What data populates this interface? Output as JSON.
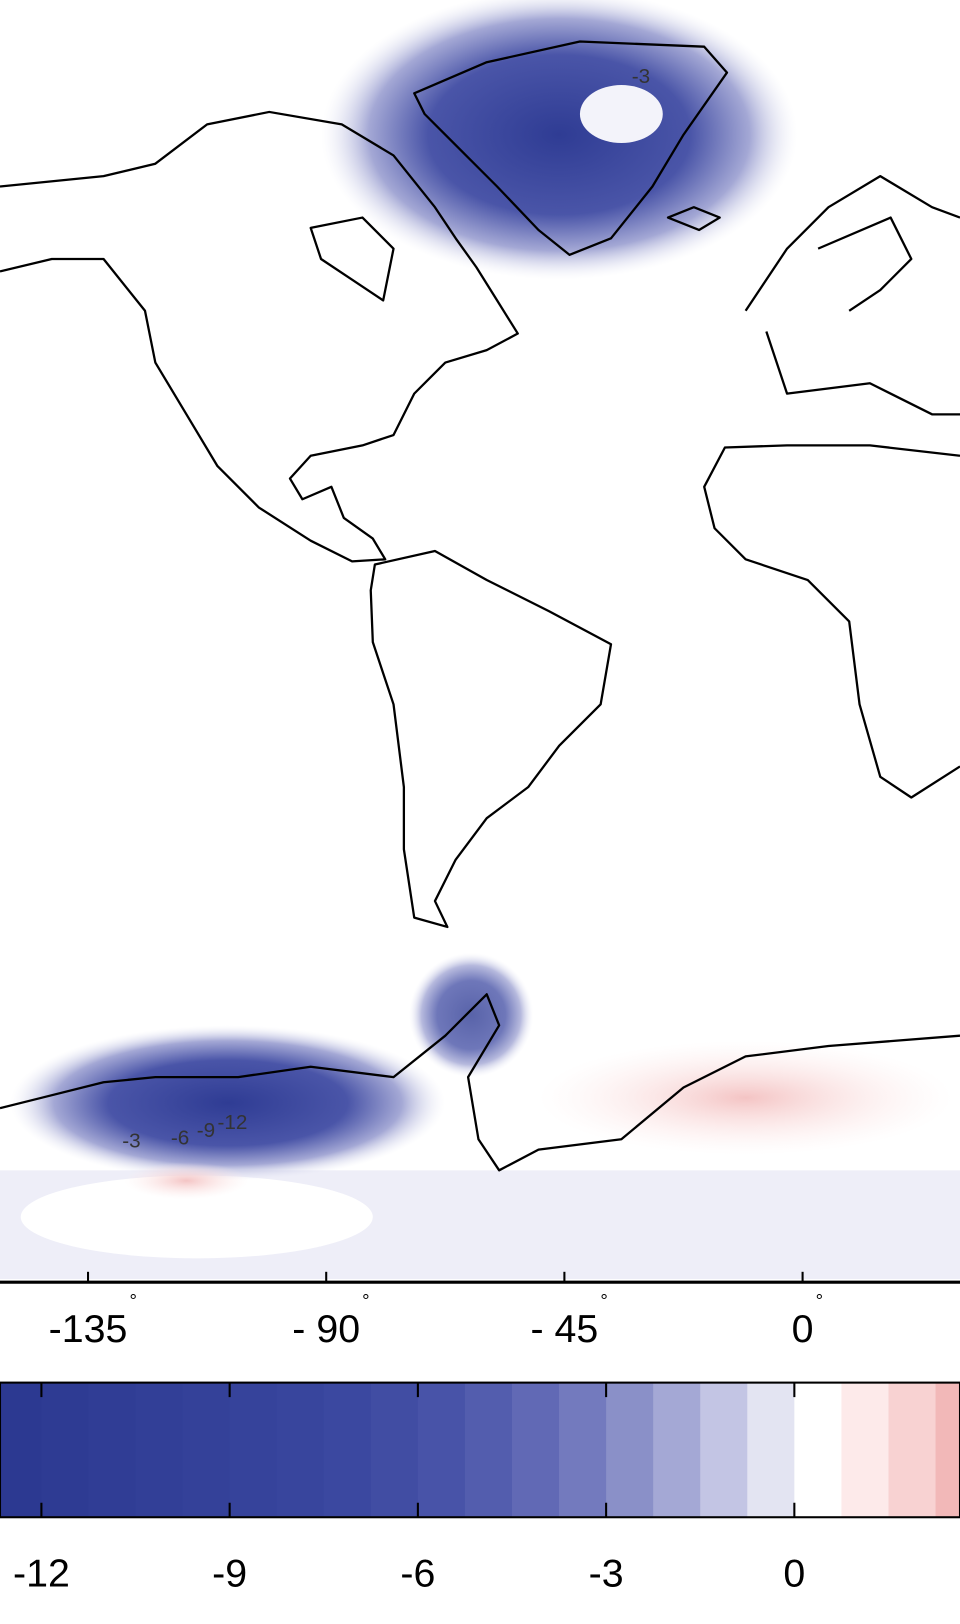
{
  "map": {
    "type": "contour-map",
    "xaxis": {
      "xlim": [
        -151.63,
        29.74
      ],
      "xticks": [
        -135,
        {
          "value": -90,
          "label": "- 90"
        },
        {
          "value": -45,
          "label": "- 45"
        },
        0
      ],
      "degree_symbol": "°"
    },
    "contour_labels": [
      "-3",
      "-3",
      "-6",
      "-9",
      "-12"
    ],
    "colorbar": {
      "lim": [
        -12.66,
        2.64
      ],
      "ticks": [
        -12,
        -9,
        -6,
        -3,
        0
      ],
      "levels": [
        -12.75,
        -12,
        -11.25,
        -10.5,
        -9.75,
        -9,
        -8.25,
        -7.5,
        -6.75,
        -6,
        -5.25,
        -4.5,
        -3.75,
        -3,
        -2.25,
        -1.5,
        -0.75,
        0,
        0.75,
        1.5,
        2.25,
        3
      ],
      "colors": [
        "#2c3991",
        "#2e3b93",
        "#303d95",
        "#323f97",
        "#344199",
        "#36439b",
        "#38459d",
        "#3b48a0",
        "#414da3",
        "#4853a8",
        "#535dae",
        "#6169b5",
        "#737abe",
        "#8a90c8",
        "#a4a8d5",
        "#c3c5e4",
        "#e3e4f2",
        "#ffffff",
        "#fdeaea",
        "#f8d2d2",
        "#f2b8b8"
      ]
    }
  }
}
